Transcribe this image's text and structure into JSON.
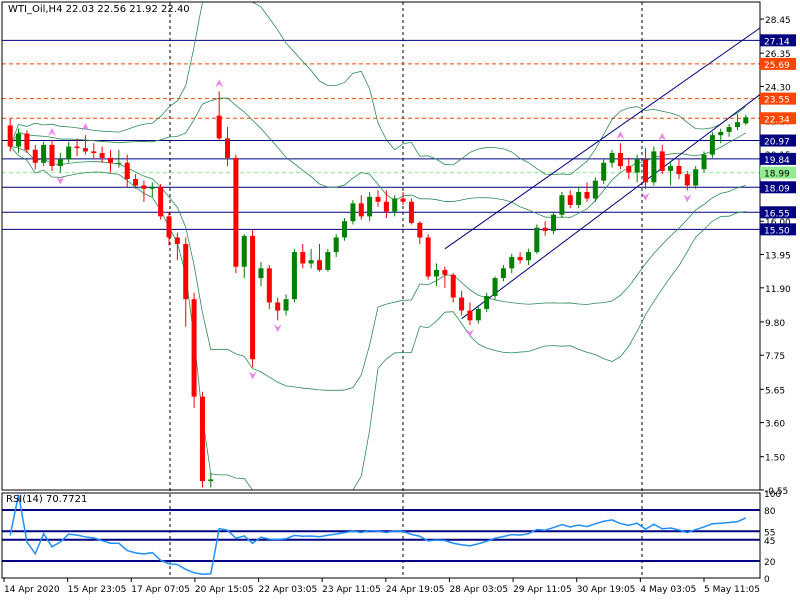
{
  "header": {
    "symbol": "WTI_Oil,H4",
    "ohlc": "22.03 22.56 21.92 22.40"
  },
  "chart_data": {
    "type": "candlestick",
    "price_axis": {
      "ylim": [
        -0.55,
        29.5
      ],
      "ticks": [
        "28.45",
        "26.35",
        "24.30",
        "22.20",
        "20.15",
        "18.05",
        "16.00",
        "13.95",
        "11.90",
        "9.80",
        "7.75",
        "5.65",
        "3.60",
        "1.50",
        "-0.55"
      ]
    },
    "time_axis": {
      "labels": [
        "14 Apr 2020",
        "15 Apr 23:05",
        "17 Apr 07:05",
        "20 Apr 15:05",
        "22 Apr 03:05",
        "23 Apr 11:05",
        "24 Apr 19:05",
        "28 Apr 03:05",
        "29 Apr 11:05",
        "30 Apr 19:05",
        "4 May 03:05",
        "5 May 11:05"
      ]
    },
    "horizontal_levels": [
      {
        "label": "27.14",
        "value": 27.14,
        "style": "solid",
        "color": "#000080"
      },
      {
        "label": "25.69",
        "value": 25.69,
        "style": "dashed",
        "color": "#ff4500"
      },
      {
        "label": "23.55",
        "value": 23.55,
        "style": "dashed",
        "color": "#ff4500"
      },
      {
        "label": "22.34",
        "value": 22.34,
        "style": "dashed",
        "color": "#ff4500"
      },
      {
        "label": "20.97",
        "value": 20.97,
        "style": "solid",
        "color": "#000080"
      },
      {
        "label": "19.84",
        "value": 19.84,
        "style": "solid",
        "color": "#000080"
      },
      {
        "label": "18.99",
        "value": 18.99,
        "style": "dashed",
        "color": "#90ee90"
      },
      {
        "label": "18.09",
        "value": 18.09,
        "style": "solid",
        "color": "#000080"
      },
      {
        "label": "16.55",
        "value": 16.55,
        "style": "solid",
        "color": "#000080"
      },
      {
        "label": "15.50",
        "value": 15.5,
        "style": "solid",
        "color": "#000080"
      }
    ],
    "candles": [
      [
        21.9,
        22.3,
        20.3,
        20.6
      ],
      [
        20.6,
        21.7,
        20.2,
        21.4
      ],
      [
        21.4,
        21.6,
        20.2,
        20.4
      ],
      [
        20.4,
        20.7,
        19.2,
        19.6
      ],
      [
        19.6,
        20.9,
        19.4,
        20.7
      ],
      [
        20.7,
        21.0,
        19.1,
        19.4
      ],
      [
        19.4,
        20.2,
        19.0,
        19.8
      ],
      [
        19.8,
        20.9,
        19.6,
        20.6
      ],
      [
        20.6,
        21.1,
        20.0,
        20.5
      ],
      [
        20.5,
        21.3,
        20.1,
        20.3
      ],
      [
        20.3,
        20.8,
        19.9,
        20.2
      ],
      [
        20.2,
        20.6,
        19.6,
        19.9
      ],
      [
        19.9,
        20.4,
        19.0,
        19.6
      ],
      [
        19.6,
        20.4,
        19.3,
        19.6
      ],
      [
        19.6,
        20.1,
        18.1,
        18.6
      ],
      [
        18.6,
        18.9,
        18.0,
        18.2
      ],
      [
        18.2,
        18.5,
        17.2,
        18.0
      ],
      [
        18.0,
        18.4,
        17.5,
        18.1
      ],
      [
        18.1,
        18.3,
        16.1,
        16.3
      ],
      [
        16.3,
        16.6,
        14.5,
        15.0
      ],
      [
        15.0,
        15.3,
        13.6,
        14.6
      ],
      [
        14.6,
        15.0,
        9.5,
        11.2
      ],
      [
        11.2,
        11.6,
        4.5,
        5.2
      ],
      [
        5.2,
        5.5,
        -0.4,
        0.0
      ],
      [
        0.0,
        0.5,
        -0.4,
        0.1
      ],
      [
        22.5,
        24.0,
        21.0,
        21.1
      ],
      [
        21.1,
        21.8,
        19.4,
        19.9
      ],
      [
        19.9,
        20.1,
        12.8,
        13.2
      ],
      [
        13.2,
        15.2,
        12.5,
        15.1
      ],
      [
        15.1,
        15.5,
        7.0,
        7.5
      ],
      [
        12.5,
        13.5,
        12.0,
        13.1
      ],
      [
        13.1,
        13.3,
        10.6,
        11.0
      ],
      [
        11.0,
        11.3,
        9.9,
        10.5
      ],
      [
        10.5,
        11.5,
        10.2,
        11.2
      ],
      [
        11.2,
        14.3,
        11.0,
        14.1
      ],
      [
        14.1,
        14.6,
        13.1,
        13.4
      ],
      [
        13.4,
        14.3,
        13.1,
        13.6
      ],
      [
        13.6,
        14.6,
        12.9,
        13.0
      ],
      [
        13.0,
        14.3,
        12.9,
        14.1
      ],
      [
        14.1,
        15.2,
        13.8,
        15.0
      ],
      [
        15.0,
        16.2,
        14.8,
        16.0
      ],
      [
        16.0,
        17.3,
        15.8,
        17.1
      ],
      [
        17.1,
        17.6,
        16.1,
        16.3
      ],
      [
        16.3,
        17.8,
        16.0,
        17.5
      ],
      [
        17.5,
        17.9,
        16.9,
        17.2
      ],
      [
        17.2,
        17.9,
        16.2,
        16.6
      ],
      [
        16.6,
        17.6,
        16.3,
        17.4
      ],
      [
        17.4,
        17.8,
        17.0,
        17.2
      ],
      [
        17.2,
        17.4,
        15.8,
        15.9
      ],
      [
        15.9,
        16.0,
        14.6,
        15.0
      ],
      [
        15.0,
        15.2,
        12.4,
        12.6
      ],
      [
        12.6,
        13.4,
        12.0,
        13.0
      ],
      [
        13.0,
        13.2,
        11.9,
        12.7
      ],
      [
        12.7,
        12.8,
        11.0,
        11.3
      ],
      [
        11.3,
        11.7,
        10.2,
        10.5
      ],
      [
        10.5,
        11.0,
        9.6,
        9.9
      ],
      [
        9.9,
        10.8,
        9.7,
        10.6
      ],
      [
        10.6,
        11.6,
        10.4,
        11.4
      ],
      [
        11.4,
        12.6,
        11.2,
        12.5
      ],
      [
        12.5,
        13.3,
        12.3,
        13.1
      ],
      [
        13.1,
        14.0,
        12.8,
        13.8
      ],
      [
        13.8,
        14.1,
        13.4,
        13.6
      ],
      [
        13.6,
        14.3,
        13.3,
        14.1
      ],
      [
        14.1,
        15.8,
        14.0,
        15.6
      ],
      [
        15.6,
        16.0,
        15.1,
        15.4
      ],
      [
        15.4,
        16.6,
        15.2,
        16.4
      ],
      [
        16.4,
        17.8,
        16.2,
        17.6
      ],
      [
        17.6,
        17.9,
        16.8,
        17.0
      ],
      [
        17.0,
        18.1,
        16.8,
        17.8
      ],
      [
        17.8,
        18.4,
        17.2,
        17.4
      ],
      [
        17.4,
        18.7,
        17.2,
        18.5
      ],
      [
        18.5,
        19.8,
        18.3,
        19.6
      ],
      [
        19.6,
        20.4,
        19.3,
        20.2
      ],
      [
        20.2,
        20.8,
        19.2,
        19.4
      ],
      [
        19.4,
        19.9,
        18.6,
        19.0
      ],
      [
        19.0,
        20.1,
        18.4,
        19.8
      ],
      [
        19.8,
        20.5,
        18.0,
        18.4
      ],
      [
        18.4,
        20.6,
        18.2,
        20.3
      ],
      [
        20.3,
        20.7,
        18.9,
        19.1
      ],
      [
        19.1,
        19.6,
        18.2,
        19.4
      ],
      [
        19.4,
        19.8,
        18.6,
        18.9
      ],
      [
        18.9,
        19.1,
        17.9,
        18.2
      ],
      [
        18.2,
        19.4,
        18.0,
        19.2
      ],
      [
        19.2,
        20.3,
        19.0,
        20.1
      ],
      [
        20.1,
        21.5,
        19.9,
        21.3
      ],
      [
        21.3,
        21.7,
        20.8,
        21.5
      ],
      [
        21.5,
        22.0,
        21.2,
        21.8
      ],
      [
        21.8,
        22.6,
        21.6,
        22.1
      ],
      [
        22.03,
        22.56,
        21.92,
        22.4
      ]
    ],
    "rsi": {
      "title": "RSI(14) 70.7721",
      "period": 14,
      "last": 70.7721,
      "ylim": [
        0,
        100
      ],
      "ticks": [
        "100",
        "80",
        "55",
        "45",
        "20",
        "0"
      ],
      "level_lines": [
        80,
        55,
        45,
        20
      ],
      "level_labels": [
        "80",
        "55",
        "45",
        "20"
      ]
    },
    "colors": {
      "up": "#008000",
      "down": "#ff0000",
      "bands": "#2e8b57",
      "channel": "#000080",
      "fractal": "#ee82ee",
      "rsi": "#1e90ff"
    }
  }
}
